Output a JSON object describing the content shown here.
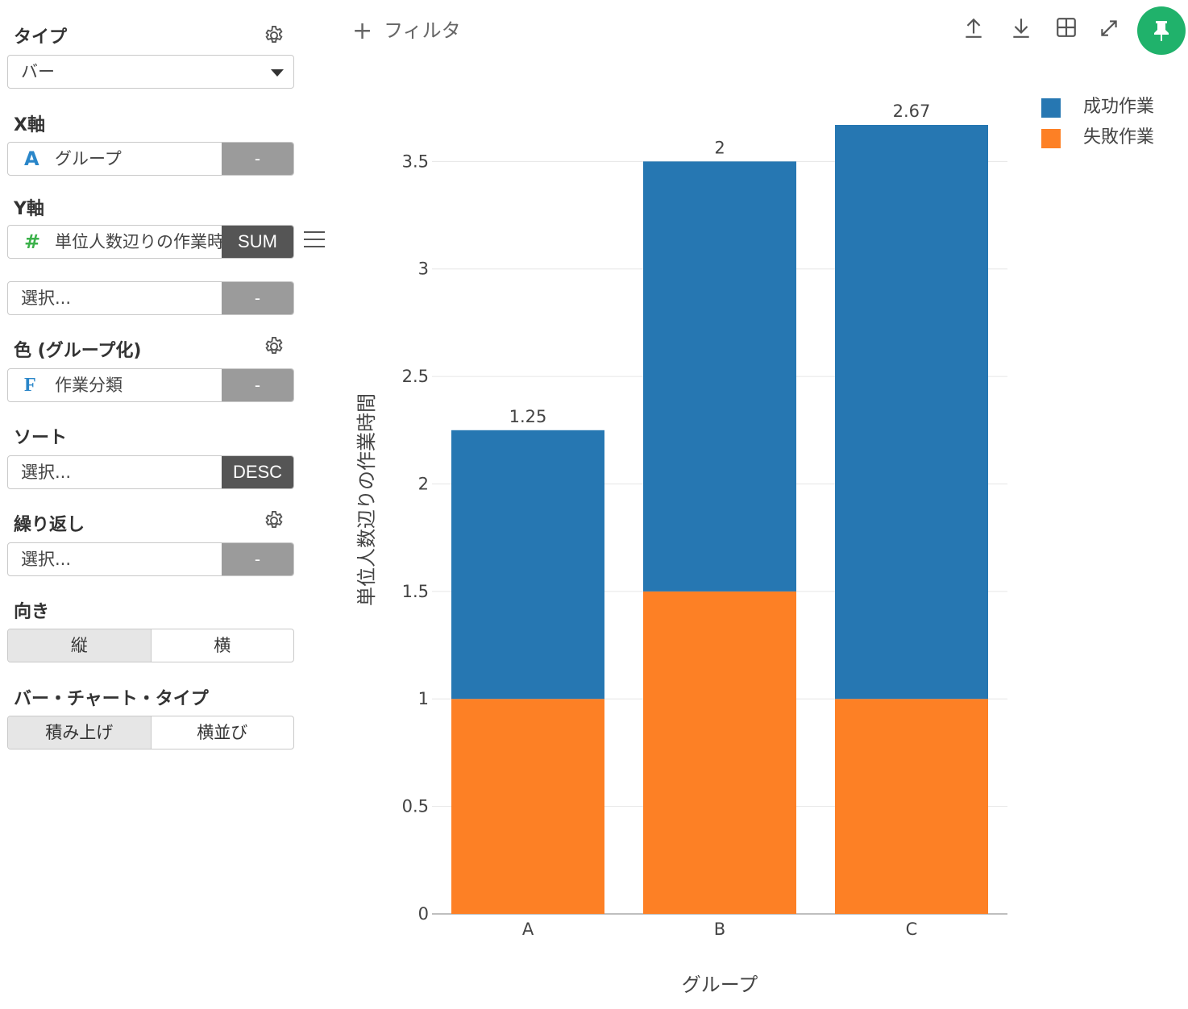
{
  "sidebar": {
    "type": {
      "label": "タイプ",
      "value": "バー"
    },
    "x_axis": {
      "label": "X軸",
      "icon": "A",
      "value": "グループ",
      "button": "-"
    },
    "y_axis": {
      "label": "Y軸",
      "icon": "#",
      "value": "単位人数辺りの作業時間",
      "aggregate": "SUM"
    },
    "y_axis_extra": {
      "placeholder": "選択...",
      "button": "-"
    },
    "color": {
      "label": "色 (グループ化)",
      "icon": "F",
      "value": "作業分類",
      "button": "-"
    },
    "sort": {
      "label": "ソート",
      "placeholder": "選択...",
      "button": "DESC"
    },
    "repeat": {
      "label": "繰り返し",
      "placeholder": "選択...",
      "button": "-"
    },
    "orientation": {
      "label": "向き",
      "options": [
        "縦",
        "横"
      ],
      "selected": "縦"
    },
    "bar_type": {
      "label": "バー・チャート・タイプ",
      "options": [
        "積み上げ",
        "横並び"
      ],
      "selected": "積み上げ"
    }
  },
  "toolbar": {
    "filter_label": "フィルタ",
    "icons": [
      "upload-icon",
      "download-icon",
      "grid-icon",
      "expand-icon",
      "pin-icon"
    ],
    "pin_color": "#20b26b"
  },
  "chart_data": {
    "type": "bar",
    "stacked": true,
    "categories": [
      "A",
      "B",
      "C"
    ],
    "series": [
      {
        "name": "失敗作業",
        "color": "#fd8025",
        "values": [
          1,
          1.5,
          1
        ]
      },
      {
        "name": "成功作業",
        "color": "#2677b2",
        "values": [
          1.25,
          2,
          2.67
        ]
      }
    ],
    "legend_order": [
      "成功作業",
      "失敗作業"
    ],
    "xlabel": "グループ",
    "ylabel": "単位人数辺りの作業時間",
    "ylim": [
      0,
      3.67
    ],
    "yticks": [
      0,
      0.5,
      1,
      1.5,
      2,
      2.5,
      3,
      3.5
    ],
    "ytick_labels": [
      "0",
      "0.5",
      "1",
      "1.5",
      "2",
      "2.5",
      "3",
      "3.5"
    ],
    "grid": true,
    "legend_position": "top-right"
  }
}
